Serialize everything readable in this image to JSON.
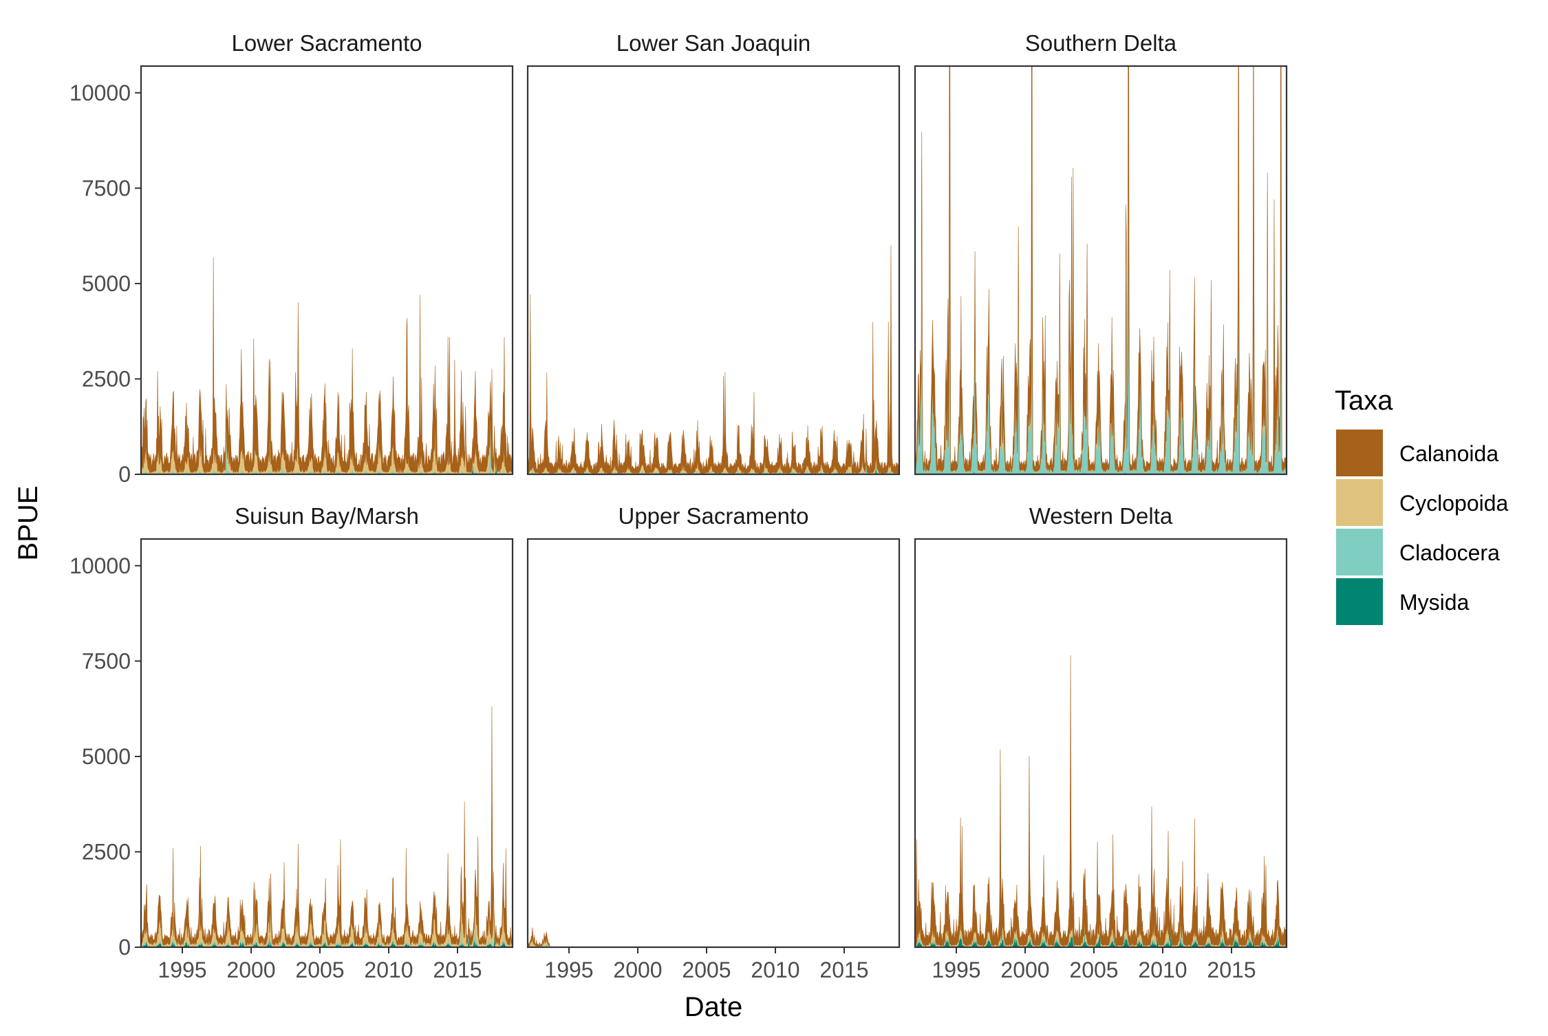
{
  "chart_data": {
    "type": "area",
    "layout": "facet-grid",
    "ylabel": "BPUE",
    "xlabel": "Date",
    "ylim": [
      0,
      10700
    ],
    "xlim": [
      1992,
      2019
    ],
    "y_ticks": [
      0,
      2500,
      5000,
      7500,
      10000
    ],
    "x_ticks": [
      1995,
      2000,
      2005,
      2010,
      2015
    ],
    "grid": false,
    "legend": {
      "title": "Taxa",
      "position": "right",
      "entries": [
        {
          "name": "Calanoida",
          "color": "#A6611A"
        },
        {
          "name": "Cyclopoida",
          "color": "#DFC27D"
        },
        {
          "name": "Cladocera",
          "color": "#80CDC1"
        },
        {
          "name": "Mysida",
          "color": "#018571"
        }
      ]
    },
    "stack_order": [
      "Mysida",
      "Cladocera",
      "Cyclopoida",
      "Calanoida"
    ],
    "panels": [
      {
        "name": "Lower Sacramento",
        "series": {
          "Calanoida": {
            "base": 400,
            "peak": 1100,
            "spikes": [
              [
                2000.2,
                3350
              ],
              [
                2014.8,
                2950
              ],
              [
                2016.3,
                2150
              ],
              [
                2017.5,
                2600
              ]
            ]
          },
          "Cyclopoida": {
            "base": 80,
            "peak": 500,
            "spikes": [
              [
                2015.6,
                1400
              ],
              [
                2017.7,
                900
              ]
            ]
          },
          "Cladocera": {
            "base": 10,
            "peak": 60,
            "spikes": [
              [
                1998.2,
                1400
              ],
              [
                2017.4,
                1600
              ]
            ]
          },
          "Mysida": {
            "base": 5,
            "peak": 20,
            "spikes": [
              [
                2016.1,
                350
              ],
              [
                2017.8,
                300
              ]
            ]
          }
        }
      },
      {
        "name": "Lower San Joaquin",
        "series": {
          "Calanoida": {
            "base": 250,
            "peak": 750,
            "spikes": [
              [
                1992.2,
                4600
              ],
              [
                1993.4,
                2500
              ],
              [
                2017.1,
                3950
              ],
              [
                2018.4,
                5800
              ],
              [
                2018.2,
                3800
              ]
            ]
          },
          "Cyclopoida": {
            "base": 30,
            "peak": 120,
            "spikes": [
              [
                2015.5,
                500
              ]
            ]
          },
          "Cladocera": {
            "base": 10,
            "peak": 60,
            "spikes": [
              [
                2016.6,
                450
              ]
            ]
          },
          "Mysida": {
            "base": 3,
            "peak": 10,
            "spikes": [
              [
                2017.3,
                300
              ]
            ]
          }
        }
      },
      {
        "name": "Southern Delta",
        "series": {
          "Calanoida": {
            "base": 250,
            "peak": 1200,
            "spikes": [
              [
                1994.5,
                10700
              ],
              [
                2000.5,
                10050
              ],
              [
                2003.5,
                7600
              ],
              [
                2007.5,
                10600
              ],
              [
                2015.5,
                9100
              ],
              [
                2016.6,
                8850
              ],
              [
                2018.6,
                8950
              ],
              [
                2018.1,
                6900
              ]
            ]
          },
          "Cyclopoida": {
            "base": 30,
            "peak": 150,
            "spikes": []
          },
          "Cladocera": {
            "base": 100,
            "peak": 1900,
            "spikes": [
              [
                1992.5,
                8300
              ],
              [
                1994.5,
                9000
              ],
              [
                1999.5,
                6100
              ],
              [
                2000.5,
                7500
              ],
              [
                2002.5,
                5400
              ],
              [
                2004.5,
                5600
              ],
              [
                2007.5,
                9500
              ],
              [
                2010.5,
                4700
              ],
              [
                2013.5,
                4600
              ],
              [
                2015.5,
                6400
              ],
              [
                2016.6,
                5300
              ],
              [
                2017.6,
                7400
              ],
              [
                2018.6,
                8500
              ]
            ]
          },
          "Mysida": {
            "base": 5,
            "peak": 20,
            "spikes": []
          }
        }
      },
      {
        "name": "Suisun Bay/Marsh",
        "series": {
          "Calanoida": {
            "base": 200,
            "peak": 500,
            "spikes": [
              [
                2003.4,
                2000
              ],
              [
                2006.5,
                2600
              ],
              [
                2015.5,
                3550
              ],
              [
                2017.5,
                6050
              ],
              [
                2016.5,
                2600
              ],
              [
                2018.5,
                2400
              ]
            ]
          },
          "Cyclopoida": {
            "base": 100,
            "peak": 450,
            "spikes": [
              [
                2015.6,
                1500
              ],
              [
                2017.6,
                1900
              ]
            ]
          },
          "Cladocera": {
            "base": 10,
            "peak": 60,
            "spikes": [
              [
                2015.3,
                1100
              ],
              [
                2016.3,
                900
              ]
            ]
          },
          "Mysida": {
            "base": 10,
            "peak": 120,
            "spikes": [
              [
                2015.8,
                500
              ],
              [
                2017.7,
                450
              ]
            ]
          }
        }
      },
      {
        "name": "Upper Sacramento",
        "series": {
          "Calanoida": {
            "base": 60,
            "peak": 120,
            "spikes": [],
            "end": 1993.6
          },
          "Cyclopoida": {
            "base": 30,
            "peak": 100,
            "spikes": [
              [
                1993.2,
                250
              ]
            ],
            "end": 1993.6
          },
          "Cladocera": {
            "base": 5,
            "peak": 30,
            "spikes": [
              [
                1993.1,
                120
              ]
            ],
            "end": 1993.6
          },
          "Mysida": {
            "base": 3,
            "peak": 10,
            "spikes": [],
            "end": 1993.6
          }
        }
      },
      {
        "name": "Western Delta",
        "series": {
          "Calanoida": {
            "base": 350,
            "peak": 900,
            "spikes": [
              [
                1992.1,
                2700
              ],
              [
                1995.4,
                2800
              ],
              [
                1998.2,
                4900
              ],
              [
                2000.3,
                4700
              ],
              [
                2003.3,
                7200
              ],
              [
                2006.4,
                2500
              ],
              [
                2009.2,
                3400
              ],
              [
                2017.5,
                2000
              ]
            ]
          },
          "Cyclopoida": {
            "base": 40,
            "peak": 200,
            "spikes": []
          },
          "Cladocera": {
            "base": 10,
            "peak": 60,
            "spikes": [
              [
                2001.6,
                400
              ]
            ]
          },
          "Mysida": {
            "base": 20,
            "peak": 200,
            "spikes": [
              [
                2009.6,
                650
              ],
              [
                2010.6,
                700
              ],
              [
                2016.6,
                500
              ]
            ]
          }
        }
      }
    ]
  }
}
